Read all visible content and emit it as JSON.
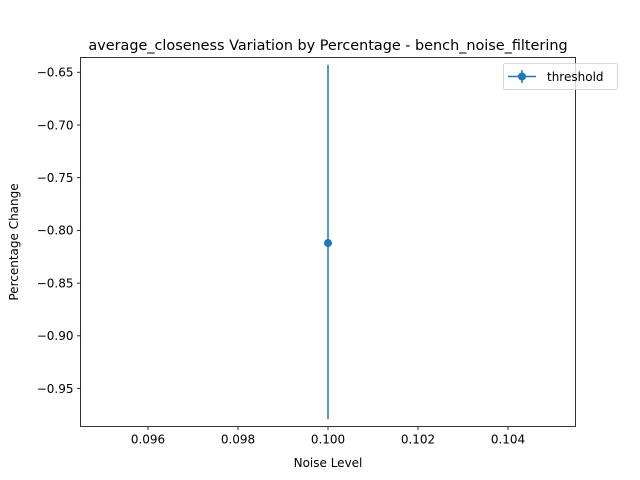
{
  "chart_data": {
    "type": "line",
    "title": "average_closeness Variation by Percentage - bench_noise_filtering",
    "xlabel": "Noise Level",
    "ylabel": "Percentage Change",
    "xlim": [
      0.0945,
      0.1055
    ],
    "ylim": [
      -0.986,
      -0.636
    ],
    "x_ticks": [
      0.096,
      0.098,
      0.1,
      0.102,
      0.104
    ],
    "x_tick_labels": [
      "0.096",
      "0.098",
      "0.100",
      "0.102",
      "0.104"
    ],
    "y_ticks": [
      -0.65,
      -0.7,
      -0.75,
      -0.8,
      -0.85,
      -0.9,
      -0.95
    ],
    "y_tick_labels": [
      "−0.65",
      "−0.70",
      "−0.75",
      "−0.80",
      "−0.85",
      "−0.90",
      "−0.95"
    ],
    "grid": false,
    "legend_position": "top-right",
    "series": [
      {
        "name": "threshold",
        "color": "#1f77b4",
        "marker": "circle",
        "points": [
          {
            "x": 0.1,
            "y": -0.812,
            "err_low": -0.979,
            "err_high": -0.643
          }
        ]
      }
    ]
  }
}
